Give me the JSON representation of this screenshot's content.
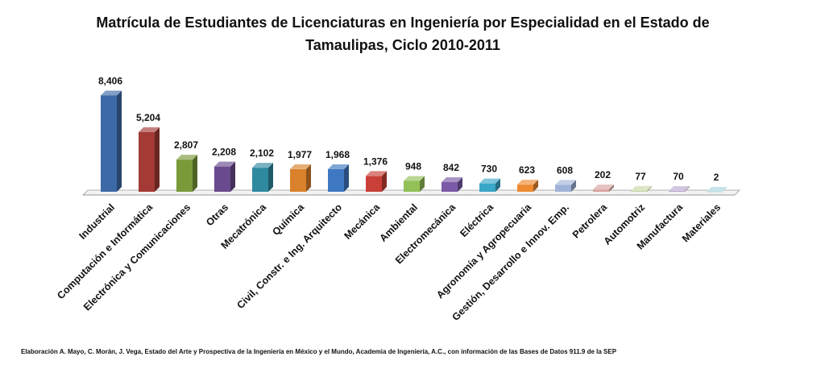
{
  "chart_data": {
    "type": "bar",
    "title": "Matrícula de Estudiantes de Licenciaturas en Ingeniería por Especialidad en el Estado de Tamaulipas, Ciclo 2010-2011",
    "categories": [
      "Industrial",
      "Computación e Informática",
      "Electrónica y Comunicaciones",
      "Otras",
      "Mecatrónica",
      "Química",
      "Civil, Constr. e Ing. Arquitecto",
      "Mecánica",
      "Ambiental",
      "Electromecánica",
      "Eléctrica",
      "Agronomía y Agropecuaria",
      "Gestión, Desarrollo e Innov. Emp.",
      "Petrolera",
      "Automotriz",
      "Manufactura",
      "Materiales"
    ],
    "values": [
      8406,
      5204,
      2807,
      2208,
      2102,
      1977,
      1968,
      1376,
      948,
      842,
      730,
      623,
      608,
      202,
      77,
      70,
      2
    ],
    "value_labels": [
      "8,406",
      "5,204",
      "2,807",
      "2,208",
      "2,102",
      "1,977",
      "1,968",
      "1,376",
      "948",
      "842",
      "730",
      "623",
      "608",
      "202",
      "77",
      "70",
      "2"
    ],
    "bar_colors": [
      "#3d6aa6",
      "#a33a35",
      "#7a9a3a",
      "#6a4a8e",
      "#2f8aa0",
      "#d9812b",
      "#3f78c2",
      "#c84038",
      "#93c158",
      "#7b5aa8",
      "#3aa6c8",
      "#ee8a30",
      "#9fb3d8",
      "#d9a3a0",
      "#c7d6a5",
      "#b9a9cf",
      "#a9d4df"
    ],
    "ylim": [
      0,
      9000
    ],
    "grid": false,
    "legend": "none",
    "xlabel": "",
    "ylabel": ""
  },
  "source_note": "Elaboración A. Mayo, C. Morán, J. Vega, Estado del Arte y Prospectiva de la Ingeniería en México y el Mundo, Academia de Ingeniería, A.C., con información de las Bases de Datos  911.9  de la SEP"
}
